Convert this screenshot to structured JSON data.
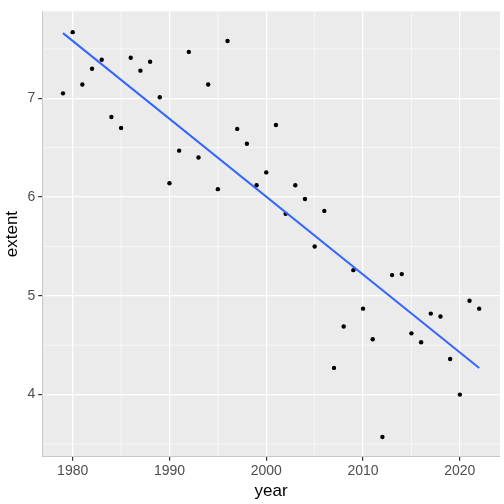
{
  "chart_data": {
    "type": "scatter",
    "x_label": "year",
    "y_label": "extent",
    "x": [
      1979,
      1980,
      1981,
      1982,
      1983,
      1984,
      1985,
      1986,
      1987,
      1988,
      1989,
      1990,
      1991,
      1992,
      1993,
      1994,
      1995,
      1996,
      1997,
      1998,
      1999,
      2000,
      2001,
      2002,
      2003,
      2004,
      2005,
      2006,
      2007,
      2008,
      2009,
      2010,
      2011,
      2012,
      2013,
      2014,
      2015,
      2016,
      2017,
      2018,
      2019,
      2020,
      2021,
      2022
    ],
    "series": [
      {
        "type": "scatter",
        "color": "#000000",
        "marker": "circle",
        "values": [
          7.05,
          7.67,
          7.14,
          7.3,
          7.39,
          6.81,
          6.7,
          7.41,
          7.28,
          7.37,
          7.01,
          6.14,
          6.47,
          7.47,
          6.4,
          7.14,
          6.08,
          7.58,
          6.69,
          6.54,
          6.12,
          6.25,
          6.73,
          5.83,
          6.12,
          5.98,
          5.5,
          5.86,
          4.27,
          4.69,
          5.26,
          4.87,
          4.56,
          3.57,
          5.21,
          5.22,
          4.62,
          4.53,
          4.82,
          4.79,
          4.36,
          4.0,
          4.95,
          4.87
        ]
      },
      {
        "type": "line",
        "color": "#3366FF",
        "line_style": "solid",
        "x": [
          1979,
          2022
        ],
        "values": [
          7.66,
          4.27
        ]
      }
    ],
    "xlim": [
      1976.85,
      2024.15
    ],
    "xticks": [
      1980,
      1990,
      2000,
      2010,
      2020
    ],
    "ylim": [
      3.37,
      7.88
    ],
    "yticks": [
      4,
      5,
      6,
      7
    ],
    "grid": true
  }
}
